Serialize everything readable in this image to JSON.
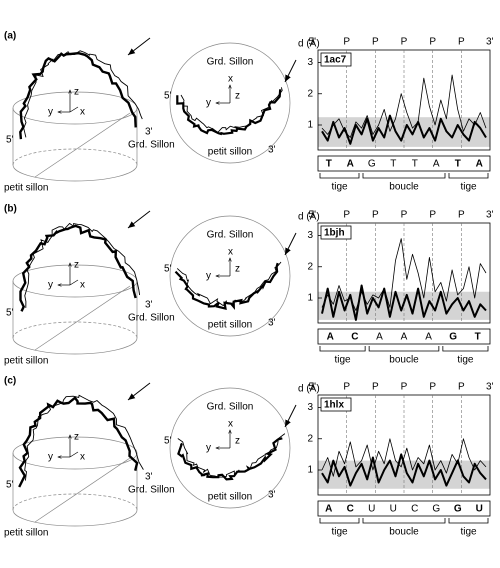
{
  "panels": [
    {
      "label": "(a)",
      "side_view": {
        "axes": [
          "z",
          "y",
          "x"
        ],
        "end5": "5'",
        "end3": "3'",
        "major_groove": "Grd. Sillon",
        "minor_groove": "petit sillon"
      },
      "top_view": {
        "axes": [
          "x",
          "y",
          "z"
        ],
        "end5": "5'",
        "end3": "3'",
        "major_groove": "Grd. Sillon",
        "minor_groove": "petit sillon"
      }
    },
    {
      "label": "(b)",
      "side_view": {
        "axes": [
          "z",
          "y",
          "x"
        ],
        "end5": "5'",
        "end3": "3'",
        "major_groove": "Grd. Sillon",
        "minor_groove": "petit sillon"
      },
      "top_view": {
        "axes": [
          "x",
          "y",
          "z"
        ],
        "end5": "5'",
        "end3": "3'",
        "major_groove": "Grd. Sillon",
        "minor_groove": "petit sillon"
      }
    },
    {
      "label": "(c)",
      "side_view": {
        "axes": [
          "z",
          "y",
          "x"
        ],
        "end5": "5'",
        "end3": "3'",
        "major_groove": "Grd. Sillon",
        "minor_groove": "petit sillon"
      },
      "top_view": {
        "axes": [
          "x",
          "y",
          "z"
        ],
        "end5": "5'",
        "end3": "3'",
        "major_groove": "Grd. Sillon",
        "minor_groove": "petit sillon"
      }
    }
  ],
  "chart_data": [
    {
      "type": "line",
      "title": "1ac7",
      "y_label": "d (Å)",
      "end5": "5'",
      "end3": "3'",
      "top_markers": [
        "P",
        "P",
        "P",
        "P",
        "P"
      ],
      "sequence": [
        "T",
        "A",
        "G",
        "T",
        "T",
        "A",
        "T",
        "A"
      ],
      "bold": [
        true,
        true,
        false,
        false,
        false,
        false,
        true,
        true
      ],
      "regions": [
        "tige",
        "boucle",
        "tige"
      ],
      "x": [
        0,
        1,
        2,
        3,
        4,
        5,
        6,
        7,
        8,
        9,
        10,
        11,
        12,
        13,
        14,
        15,
        16,
        17,
        18,
        19,
        20,
        21,
        22,
        23,
        24,
        25,
        26,
        27,
        28,
        29
      ],
      "xlim": [
        0,
        29
      ],
      "ylim": [
        0.2,
        3.4
      ],
      "yticks": [
        1,
        2,
        3
      ],
      "band": [
        0.3,
        1.25
      ],
      "series": [
        {
          "color": "#000000",
          "width": 2,
          "values": [
            0.8,
            0.5,
            1.1,
            0.6,
            0.9,
            0.4,
            1.0,
            0.7,
            1.2,
            0.5,
            0.9,
            0.6,
            1.3,
            0.8,
            0.5,
            1.0,
            0.7,
            1.1,
            0.6,
            0.9,
            0.5,
            1.2,
            0.8,
            0.6,
            1.0,
            0.7,
            0.5,
            1.1,
            0.9,
            0.6
          ]
        },
        {
          "color": "#000000",
          "width": 0.8,
          "values": [
            0.9,
            0.7,
            1.0,
            1.2,
            0.8,
            0.6,
            1.1,
            0.9,
            1.3,
            0.7,
            1.0,
            1.5,
            0.8,
            1.2,
            2.0,
            1.4,
            0.9,
            1.1,
            2.5,
            1.6,
            1.0,
            1.8,
            1.2,
            2.6,
            1.5,
            0.8,
            1.2,
            1.0,
            1.4,
            0.9
          ]
        }
      ]
    },
    {
      "type": "line",
      "title": "1bjh",
      "y_label": "d (Å)",
      "end5": "5'",
      "end3": "3'",
      "top_markers": [
        "P",
        "P",
        "P",
        "P",
        "P"
      ],
      "sequence": [
        "A",
        "C",
        "A",
        "A",
        "A",
        "G",
        "T"
      ],
      "bold": [
        true,
        true,
        false,
        false,
        false,
        true,
        true
      ],
      "regions": [
        "tige",
        "boucle",
        "tige"
      ],
      "x": [
        0,
        1,
        2,
        3,
        4,
        5,
        6,
        7,
        8,
        9,
        10,
        11,
        12,
        13,
        14,
        15,
        16,
        17,
        18,
        19,
        20,
        21,
        22,
        23,
        24,
        25,
        26,
        27,
        28,
        29
      ],
      "xlim": [
        0,
        29
      ],
      "ylim": [
        0.2,
        3.4
      ],
      "yticks": [
        1,
        2,
        3
      ],
      "band": [
        0.3,
        1.2
      ],
      "series": [
        {
          "color": "#000000",
          "width": 2,
          "values": [
            0.5,
            1.3,
            0.4,
            1.2,
            0.6,
            1.1,
            0.3,
            1.4,
            0.5,
            1.0,
            0.7,
            1.3,
            0.4,
            1.2,
            0.6,
            1.1,
            0.5,
            1.3,
            0.4,
            0.9,
            0.6,
            1.2,
            0.5,
            0.8,
            1.0,
            0.6,
            0.9,
            0.4,
            0.8,
            0.6
          ]
        },
        {
          "color": "#000000",
          "width": 0.8,
          "values": [
            0.7,
            1.1,
            0.8,
            1.4,
            0.9,
            1.0,
            0.6,
            1.2,
            0.8,
            1.1,
            1.0,
            1.3,
            0.7,
            2.2,
            2.9,
            1.6,
            2.4,
            1.8,
            1.0,
            2.3,
            1.2,
            1.5,
            0.9,
            1.9,
            1.1,
            1.3,
            2.0,
            1.0,
            2.1,
            1.8
          ]
        }
      ]
    },
    {
      "type": "line",
      "title": "1hlx",
      "y_label": "d (Å)",
      "end5": "5'",
      "end3": "3'",
      "top_markers": [
        "P",
        "P",
        "P",
        "P",
        "P"
      ],
      "sequence": [
        "A",
        "C",
        "U",
        "U",
        "C",
        "G",
        "G",
        "U"
      ],
      "bold": [
        true,
        true,
        false,
        false,
        false,
        false,
        true,
        true
      ],
      "regions": [
        "tige",
        "boucle",
        "tige"
      ],
      "x": [
        0,
        1,
        2,
        3,
        4,
        5,
        6,
        7,
        8,
        9,
        10,
        11,
        12,
        13,
        14,
        15,
        16,
        17,
        18,
        19,
        20,
        21,
        22,
        23,
        24,
        25,
        26,
        27,
        28,
        29
      ],
      "xlim": [
        0,
        29
      ],
      "ylim": [
        0.2,
        3.4
      ],
      "yticks": [
        1,
        2,
        3
      ],
      "band": [
        0.4,
        1.3
      ],
      "series": [
        {
          "color": "#000000",
          "width": 2,
          "values": [
            0.9,
            0.6,
            1.3,
            0.8,
            1.1,
            0.5,
            0.9,
            1.2,
            0.7,
            1.4,
            0.6,
            1.0,
            1.3,
            0.8,
            1.5,
            0.9,
            0.6,
            1.2,
            0.8,
            1.3,
            0.7,
            1.0,
            0.5,
            0.9,
            1.3,
            0.8,
            0.6,
            1.2,
            0.9,
            0.7
          ]
        },
        {
          "color": "#000000",
          "width": 0.8,
          "values": [
            1.0,
            1.4,
            0.8,
            1.6,
            1.2,
            1.9,
            1.1,
            1.3,
            1.8,
            1.0,
            1.6,
            1.2,
            2.0,
            1.3,
            1.1,
            1.7,
            1.0,
            1.4,
            1.2,
            1.8,
            1.0,
            1.3,
            0.9,
            1.5,
            1.2,
            2.0,
            1.4,
            1.0,
            1.3,
            1.1
          ]
        }
      ]
    }
  ]
}
